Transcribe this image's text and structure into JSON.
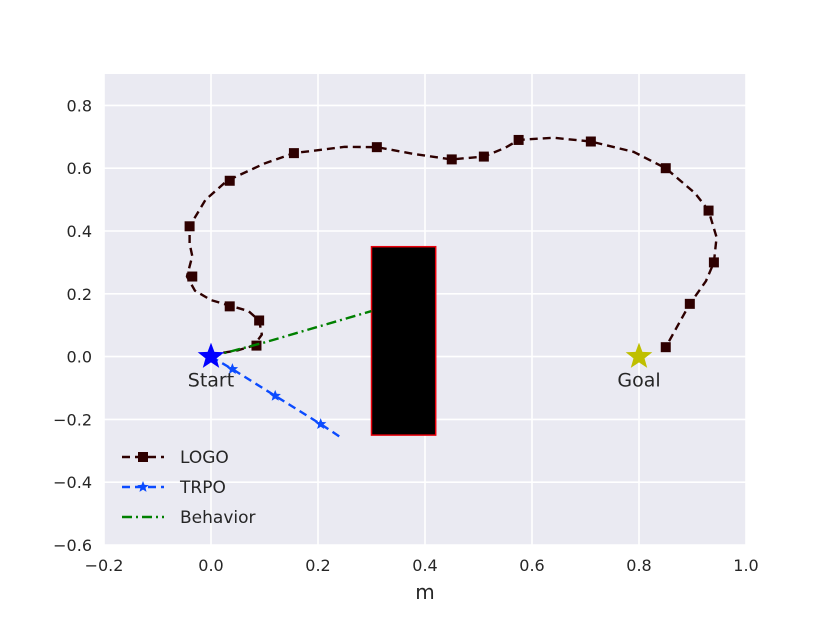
{
  "chart_data": {
    "type": "line",
    "title": "",
    "xlabel": "m",
    "ylabel": "",
    "xlim": [
      -0.2,
      1.0
    ],
    "ylim": [
      -0.6,
      0.9
    ],
    "xticks": [
      -0.2,
      0.0,
      0.2,
      0.4,
      0.6,
      0.8,
      1.0
    ],
    "yticks": [
      -0.6,
      -0.4,
      -0.2,
      0.0,
      0.2,
      0.4,
      0.6,
      0.8
    ],
    "grid": true,
    "legend_position": "lower-left",
    "background_color": "#eaeaf2",
    "obstacle": {
      "x0": 0.3,
      "x1": 0.42,
      "y0": -0.25,
      "y1": 0.35,
      "fill": "#000000",
      "edge": "#e8000b"
    },
    "annotations": [
      {
        "text": "Start",
        "x": 0.0,
        "y": 0.0,
        "marker": "star",
        "color": "#0000ff"
      },
      {
        "text": "Goal",
        "x": 0.8,
        "y": 0.0,
        "marker": "star",
        "color": "#bfbf00"
      }
    ],
    "series": [
      {
        "name": "LOGO",
        "color": "#2e0000",
        "style": "dashed",
        "marker": "square",
        "x": [
          0.0,
          0.015,
          0.05,
          0.08,
          0.095,
          0.09,
          0.07,
          0.04,
          0.0,
          -0.03,
          -0.045,
          -0.035,
          -0.04,
          -0.04,
          -0.01,
          0.03,
          0.1,
          0.155,
          0.25,
          0.31,
          0.38,
          0.45,
          0.51,
          0.55,
          0.575,
          0.64,
          0.71,
          0.79,
          0.85,
          0.905,
          0.93,
          0.945,
          0.94,
          0.925,
          0.895,
          0.85
        ],
        "y": [
          0.0,
          0.01,
          0.02,
          0.035,
          0.07,
          0.115,
          0.145,
          0.16,
          0.18,
          0.21,
          0.255,
          0.32,
          0.36,
          0.415,
          0.5,
          0.56,
          0.615,
          0.648,
          0.668,
          0.667,
          0.645,
          0.628,
          0.637,
          0.665,
          0.69,
          0.697,
          0.685,
          0.652,
          0.6,
          0.52,
          0.465,
          0.38,
          0.3,
          0.24,
          0.168,
          0.03
        ],
        "marker_points": [
          [
            0.085,
            0.035
          ],
          [
            0.09,
            0.115
          ],
          [
            0.035,
            0.16
          ],
          [
            -0.035,
            0.255
          ],
          [
            -0.04,
            0.415
          ],
          [
            0.035,
            0.56
          ],
          [
            0.155,
            0.648
          ],
          [
            0.31,
            0.667
          ],
          [
            0.45,
            0.628
          ],
          [
            0.51,
            0.637
          ],
          [
            0.575,
            0.69
          ],
          [
            0.71,
            0.685
          ],
          [
            0.85,
            0.6
          ],
          [
            0.93,
            0.465
          ],
          [
            0.94,
            0.3
          ],
          [
            0.895,
            0.168
          ],
          [
            0.85,
            0.03
          ]
        ]
      },
      {
        "name": "TRPO",
        "color": "#0b4bff",
        "style": "dashed",
        "marker": "star",
        "x": [
          0.0,
          0.04,
          0.12,
          0.205,
          0.245
        ],
        "y": [
          0.0,
          -0.04,
          -0.125,
          -0.215,
          -0.26
        ],
        "marker_points": [
          [
            0.04,
            -0.04
          ],
          [
            0.12,
            -0.125
          ],
          [
            0.205,
            -0.215
          ]
        ]
      },
      {
        "name": "Behavior",
        "color": "#008000",
        "style": "dashdot",
        "marker": "none",
        "x": [
          0.0,
          0.1,
          0.2,
          0.3
        ],
        "y": [
          0.0,
          0.045,
          0.095,
          0.145
        ],
        "marker_points": []
      }
    ]
  }
}
